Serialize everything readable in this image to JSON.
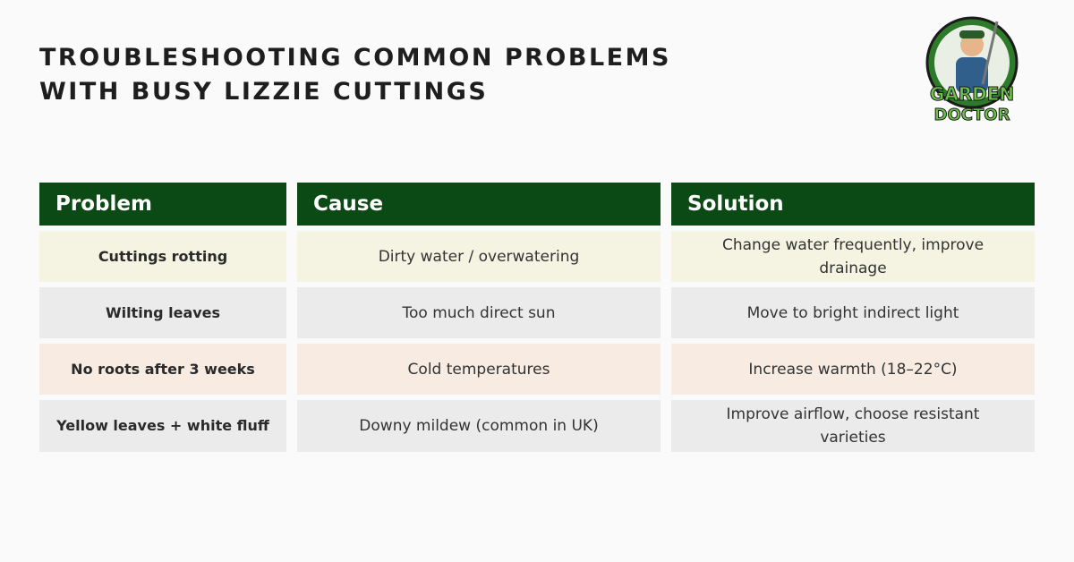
{
  "header": {
    "title_lines": [
      "TROUBLESHOOTING COMMON PROBLEMS",
      "WITH BUSY LIZZIE CUTTINGS"
    ]
  },
  "logo": {
    "lines": [
      "GARDEN",
      "DOCTOR"
    ]
  },
  "table": {
    "columns": [
      "Problem",
      "Cause",
      "Solution"
    ],
    "rows": [
      [
        "Cuttings rotting",
        "Dirty water / overwatering",
        "Change water frequently, improve drainage"
      ],
      [
        "Wilting leaves",
        "Too much direct sun",
        "Move to bright indirect light"
      ],
      [
        "No roots after 3 weeks",
        "Cold temperatures",
        "Increase warmth (18–22°C)"
      ],
      [
        "Yellow leaves + white fluff",
        "Downy mildew (common in UK)",
        "Improve airflow, choose resistant varieties"
      ]
    ]
  }
}
